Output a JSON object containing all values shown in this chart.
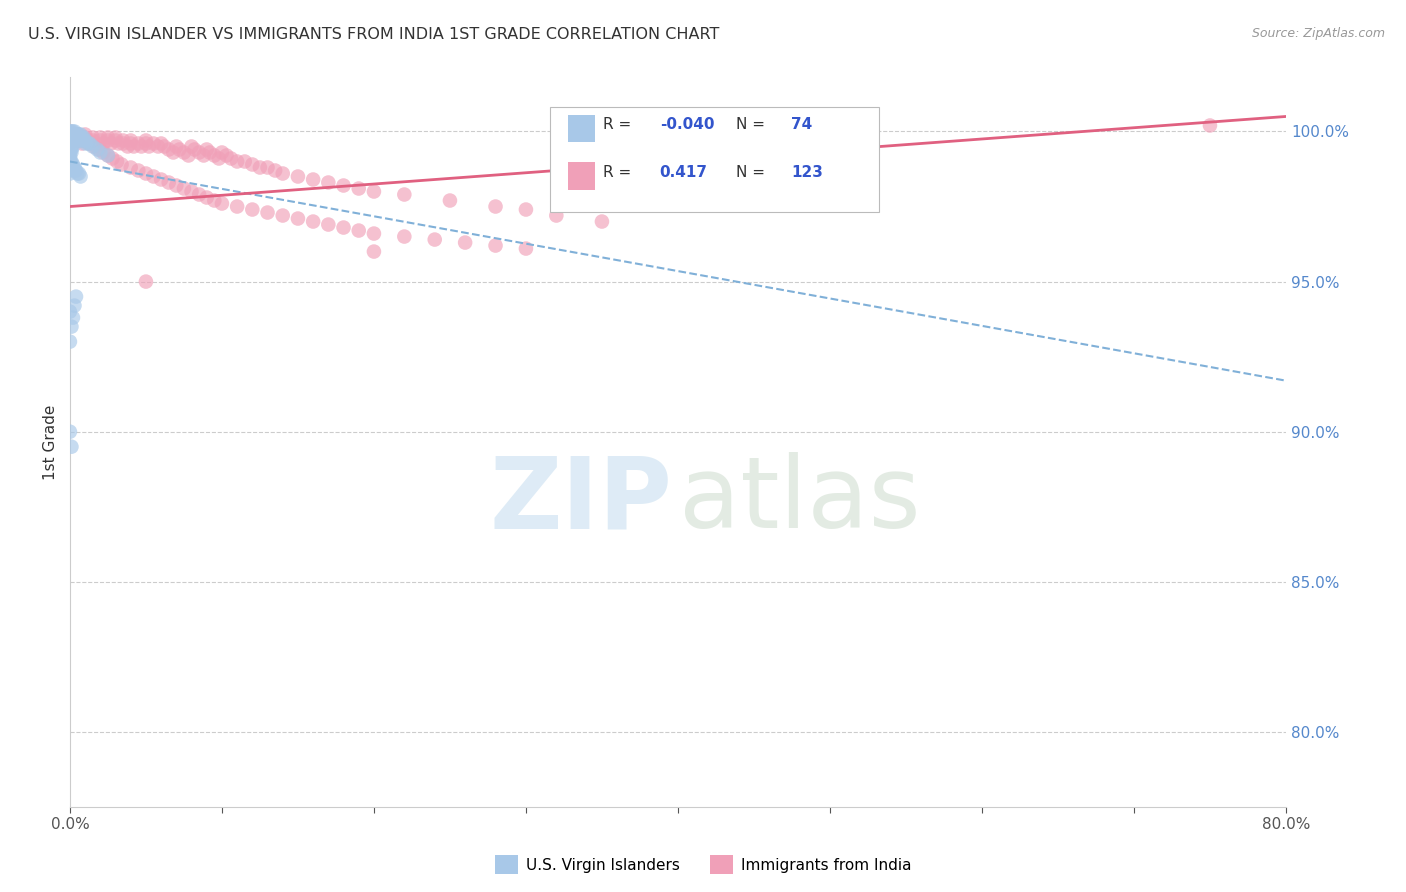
{
  "title": "U.S. VIRGIN ISLANDER VS IMMIGRANTS FROM INDIA 1ST GRADE CORRELATION CHART",
  "source": "Source: ZipAtlas.com",
  "ylabel": "1st Grade",
  "yticks": [
    "80.0%",
    "85.0%",
    "90.0%",
    "95.0%",
    "100.0%"
  ],
  "ytick_vals": [
    0.8,
    0.85,
    0.9,
    0.95,
    1.0
  ],
  "xlim": [
    0.0,
    0.8
  ],
  "ylim": [
    0.775,
    1.018
  ],
  "legend1_label": "U.S. Virgin Islanders",
  "legend2_label": "Immigrants from India",
  "r1": "-0.040",
  "n1": "74",
  "r2": "0.417",
  "n2": "123",
  "color_blue": "#a8c8e8",
  "color_pink": "#f0a0b8",
  "color_blue_line": "#80b0d8",
  "color_pink_line": "#e06080",
  "blue_line_x": [
    0.0,
    0.8
  ],
  "blue_line_y": [
    0.99,
    0.917
  ],
  "pink_line_x": [
    0.0,
    0.8
  ],
  "pink_line_y": [
    0.975,
    1.005
  ],
  "blue_x": [
    0.0,
    0.0,
    0.0,
    0.0,
    0.0,
    0.0,
    0.0,
    0.0,
    0.0,
    0.0,
    0.001,
    0.001,
    0.001,
    0.001,
    0.001,
    0.001,
    0.001,
    0.001,
    0.002,
    0.002,
    0.002,
    0.002,
    0.002,
    0.002,
    0.003,
    0.003,
    0.003,
    0.003,
    0.004,
    0.004,
    0.004,
    0.005,
    0.005,
    0.005,
    0.006,
    0.006,
    0.007,
    0.007,
    0.008,
    0.008,
    0.009,
    0.009,
    0.01,
    0.01,
    0.012,
    0.013,
    0.015,
    0.018,
    0.02,
    0.025,
    0.0,
    0.0,
    0.0,
    0.0,
    0.0,
    0.001,
    0.001,
    0.001,
    0.002,
    0.002,
    0.003,
    0.003,
    0.004,
    0.005,
    0.006,
    0.007,
    0.0,
    0.0,
    0.001,
    0.002,
    0.003,
    0.004,
    0.0,
    0.001
  ],
  "blue_y": [
    1.0,
    0.999,
    0.998,
    0.997,
    0.996,
    0.995,
    0.994,
    0.993,
    0.992,
    0.991,
    1.0,
    0.999,
    0.998,
    0.997,
    0.996,
    0.995,
    0.994,
    0.993,
    1.0,
    0.999,
    0.998,
    0.997,
    0.996,
    0.995,
    1.0,
    0.999,
    0.998,
    0.997,
    0.999,
    0.998,
    0.997,
    0.999,
    0.998,
    0.997,
    0.999,
    0.998,
    0.999,
    0.998,
    0.998,
    0.997,
    0.998,
    0.997,
    0.997,
    0.996,
    0.996,
    0.996,
    0.995,
    0.994,
    0.993,
    0.992,
    0.99,
    0.989,
    0.988,
    0.987,
    0.986,
    0.99,
    0.989,
    0.988,
    0.989,
    0.988,
    0.988,
    0.987,
    0.987,
    0.986,
    0.986,
    0.985,
    0.94,
    0.93,
    0.935,
    0.938,
    0.942,
    0.945,
    0.9,
    0.895
  ],
  "pink_x": [
    0.0,
    0.0,
    0.0,
    0.0,
    0.0,
    0.005,
    0.005,
    0.007,
    0.008,
    0.01,
    0.01,
    0.012,
    0.013,
    0.015,
    0.015,
    0.02,
    0.02,
    0.022,
    0.025,
    0.025,
    0.027,
    0.03,
    0.03,
    0.032,
    0.035,
    0.035,
    0.038,
    0.04,
    0.04,
    0.042,
    0.045,
    0.047,
    0.05,
    0.05,
    0.052,
    0.055,
    0.058,
    0.06,
    0.062,
    0.065,
    0.068,
    0.07,
    0.072,
    0.075,
    0.078,
    0.08,
    0.082,
    0.085,
    0.088,
    0.09,
    0.092,
    0.095,
    0.098,
    0.1,
    0.103,
    0.106,
    0.11,
    0.115,
    0.12,
    0.125,
    0.13,
    0.135,
    0.14,
    0.15,
    0.16,
    0.17,
    0.18,
    0.19,
    0.2,
    0.22,
    0.25,
    0.28,
    0.3,
    0.32,
    0.35,
    0.005,
    0.008,
    0.01,
    0.013,
    0.016,
    0.019,
    0.022,
    0.025,
    0.028,
    0.031,
    0.034,
    0.04,
    0.045,
    0.05,
    0.055,
    0.06,
    0.065,
    0.07,
    0.075,
    0.08,
    0.085,
    0.09,
    0.095,
    0.1,
    0.11,
    0.12,
    0.13,
    0.14,
    0.15,
    0.16,
    0.17,
    0.18,
    0.19,
    0.2,
    0.22,
    0.24,
    0.26,
    0.28,
    0.3,
    0.75,
    0.05,
    0.2
  ],
  "pink_y": [
    1.0,
    0.999,
    0.998,
    0.997,
    0.996,
    0.999,
    0.998,
    0.997,
    0.996,
    0.999,
    0.998,
    0.997,
    0.996,
    0.998,
    0.997,
    0.998,
    0.997,
    0.996,
    0.998,
    0.997,
    0.996,
    0.998,
    0.997,
    0.996,
    0.997,
    0.996,
    0.995,
    0.997,
    0.996,
    0.995,
    0.996,
    0.995,
    0.997,
    0.996,
    0.995,
    0.996,
    0.995,
    0.996,
    0.995,
    0.994,
    0.993,
    0.995,
    0.994,
    0.993,
    0.992,
    0.995,
    0.994,
    0.993,
    0.992,
    0.994,
    0.993,
    0.992,
    0.991,
    0.993,
    0.992,
    0.991,
    0.99,
    0.99,
    0.989,
    0.988,
    0.988,
    0.987,
    0.986,
    0.985,
    0.984,
    0.983,
    0.982,
    0.981,
    0.98,
    0.979,
    0.977,
    0.975,
    0.974,
    0.972,
    0.97,
    0.999,
    0.998,
    0.997,
    0.996,
    0.995,
    0.994,
    0.993,
    0.992,
    0.991,
    0.99,
    0.989,
    0.988,
    0.987,
    0.986,
    0.985,
    0.984,
    0.983,
    0.982,
    0.981,
    0.98,
    0.979,
    0.978,
    0.977,
    0.976,
    0.975,
    0.974,
    0.973,
    0.972,
    0.971,
    0.97,
    0.969,
    0.968,
    0.967,
    0.966,
    0.965,
    0.964,
    0.963,
    0.962,
    0.961,
    1.002,
    0.95,
    0.96
  ]
}
